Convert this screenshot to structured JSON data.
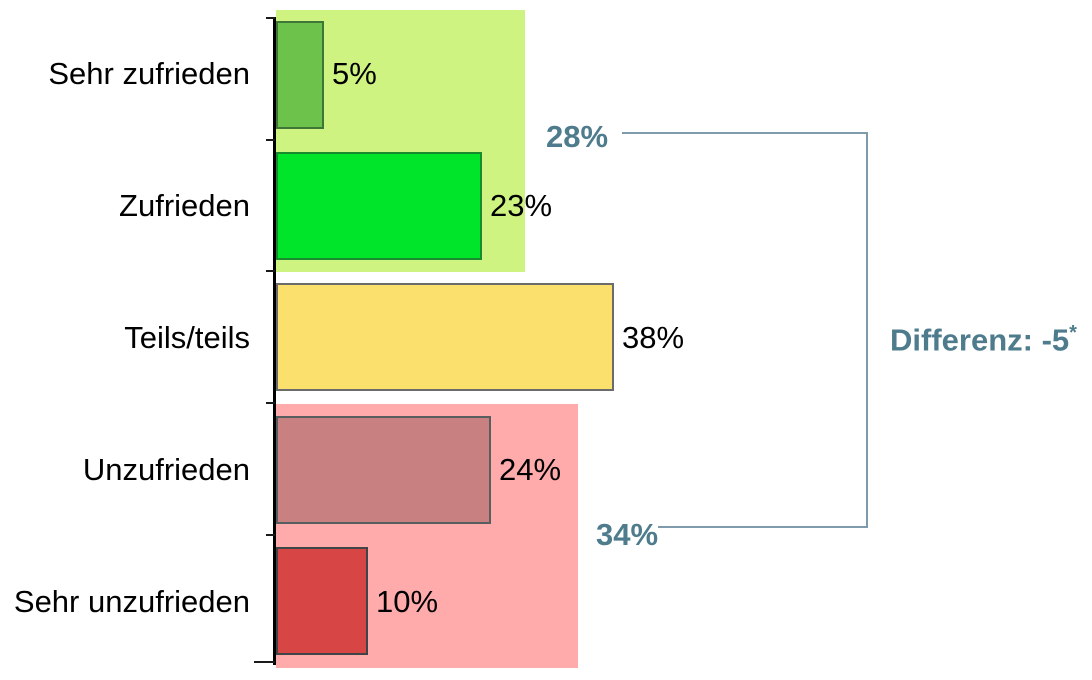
{
  "chart_data": {
    "type": "bar",
    "orientation": "horizontal",
    "categories": [
      "Sehr zufrieden",
      "Zufrieden",
      "Teils/teils",
      "Unzufrieden",
      "Sehr unzufrieden"
    ],
    "values": [
      5,
      23,
      38,
      24,
      10
    ],
    "value_labels": [
      "5%",
      "23%",
      "38%",
      "24%",
      "10%"
    ],
    "xlim": [
      0,
      40
    ],
    "grid": false,
    "legend": "none",
    "bar_colors": [
      "#6CC24B",
      "#00E42A",
      "#FBE06E",
      "#C98080",
      "#D84545"
    ],
    "bar_border_colors": [
      "#3E7637",
      "#1A8A2E",
      "#6B6B6B",
      "#585D60",
      "#3F4447"
    ],
    "groups": [
      {
        "label": "28%",
        "value": 28,
        "members": [
          "Sehr zufrieden",
          "Zufrieden"
        ],
        "fill": "#CFF380"
      },
      {
        "label": "34%",
        "value": 34,
        "members": [
          "Unzufrieden",
          "Sehr unzufrieden"
        ],
        "fill": "#FFABAB"
      }
    ],
    "difference_annotation": {
      "text": "Differenz: -5",
      "superscript": "*",
      "full_text": "Differenz: -5*"
    },
    "accent_text_color": "#4E7C8D",
    "bracket_color": "#7E9AAB",
    "axis_color": "#000000"
  }
}
